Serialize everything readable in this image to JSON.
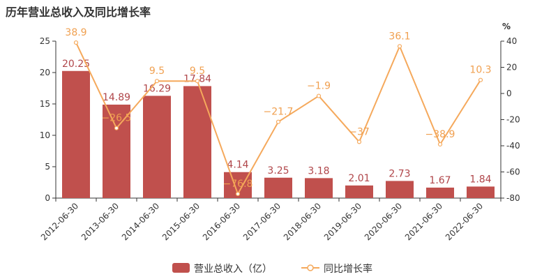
{
  "chart_data": {
    "type": "bar",
    "title": "历年营业总收入及同比增长率",
    "categories": [
      "2012-06-30",
      "2013-06-30",
      "2014-06-30",
      "2015-06-30",
      "2016-06-30",
      "2017-06-30",
      "2018-06-30",
      "2019-06-30",
      "2020-06-30",
      "2021-06-30",
      "2022-06-30"
    ],
    "series": [
      {
        "name": "营业总收入（亿）",
        "type": "bar",
        "axis": "left",
        "values": [
          20.25,
          14.89,
          16.29,
          17.84,
          4.14,
          3.25,
          3.18,
          2.01,
          2.73,
          1.67,
          1.84
        ]
      },
      {
        "name": "同比增长率",
        "type": "line",
        "axis": "right",
        "values": [
          38.9,
          -26.5,
          9.5,
          9.5,
          -76.8,
          -21.7,
          -1.9,
          -37,
          36.1,
          -38.9,
          10.3
        ]
      }
    ],
    "y_left": {
      "min": 0,
      "max": 25,
      "ticks": [
        0,
        5,
        10,
        15,
        20,
        25
      ]
    },
    "y_right": {
      "min": -80,
      "max": 40,
      "ticks": [
        -80,
        -60,
        -40,
        -20,
        0,
        20,
        40
      ],
      "unit_label": "%"
    },
    "legend_position": "bottom",
    "grid": false,
    "colors": {
      "bar": "#c0504d",
      "line": "#f5a95c"
    }
  }
}
